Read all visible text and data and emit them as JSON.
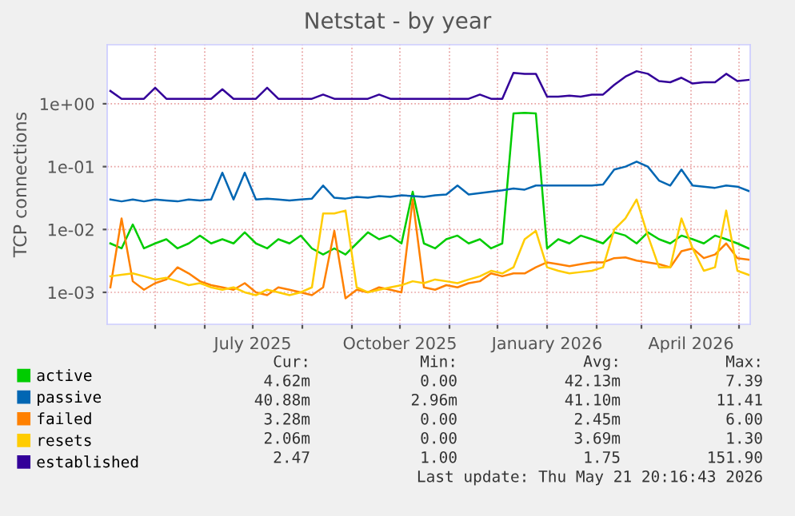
{
  "chart_data": {
    "type": "line",
    "title": "Netstat - by year",
    "ylabel": "TCP connections",
    "log": "y",
    "grid": true,
    "legend": "bottom",
    "marker": "none",
    "line_style": "solid",
    "xlim": [
      "2025-04-01",
      "2026-05-08"
    ],
    "xticks": [
      {
        "value": "2025-05-01",
        "label": null
      },
      {
        "value": "2025-06-01",
        "label": null
      },
      {
        "value": "2025-07-01",
        "label": "July 2025"
      },
      {
        "value": "2025-08-01",
        "label": null
      },
      {
        "value": "2025-09-01",
        "label": null
      },
      {
        "value": "2025-10-01",
        "label": "October 2025"
      },
      {
        "value": "2025-11-01",
        "label": null
      },
      {
        "value": "2025-12-01",
        "label": null
      },
      {
        "value": "2026-01-01",
        "label": "January 2026"
      },
      {
        "value": "2026-02-01",
        "label": null
      },
      {
        "value": "2026-03-01",
        "label": null
      },
      {
        "value": "2026-04-01",
        "label": "April 2026"
      },
      {
        "value": "2026-05-01",
        "label": null
      }
    ],
    "ylim": [
      0.00031,
      8.7
    ],
    "yticks": [
      {
        "value": 0.001,
        "label": "1e-03"
      },
      {
        "value": 0.01,
        "label": "1e-02"
      },
      {
        "value": 0.1,
        "label": "1e-01"
      },
      {
        "value": 1,
        "label": "1e+00"
      }
    ],
    "x": [
      "2025-04-03",
      "2025-04-10",
      "2025-04-17",
      "2025-04-24",
      "2025-05-01",
      "2025-05-08",
      "2025-05-15",
      "2025-05-22",
      "2025-05-29",
      "2025-06-05",
      "2025-06-12",
      "2025-06-19",
      "2025-06-26",
      "2025-07-03",
      "2025-07-10",
      "2025-07-17",
      "2025-07-24",
      "2025-07-31",
      "2025-08-07",
      "2025-08-14",
      "2025-08-21",
      "2025-08-28",
      "2025-09-04",
      "2025-09-11",
      "2025-09-18",
      "2025-09-25",
      "2025-10-02",
      "2025-10-09",
      "2025-10-16",
      "2025-10-23",
      "2025-10-30",
      "2025-11-06",
      "2025-11-13",
      "2025-11-20",
      "2025-11-27",
      "2025-12-04",
      "2025-12-11",
      "2025-12-18",
      "2025-12-25",
      "2026-01-01",
      "2026-01-08",
      "2026-01-15",
      "2026-01-22",
      "2026-01-29",
      "2026-02-05",
      "2026-02-12",
      "2026-02-19",
      "2026-02-26",
      "2026-03-05",
      "2026-03-12",
      "2026-03-19",
      "2026-03-26",
      "2026-04-02",
      "2026-04-09",
      "2026-04-16",
      "2026-04-23",
      "2026-04-30",
      "2026-05-07"
    ],
    "series": [
      {
        "name": "active",
        "color": "#00cc00",
        "values": [
          0.006,
          0.005,
          0.012,
          0.005,
          0.006,
          0.007,
          0.005,
          0.006,
          0.008,
          0.006,
          0.007,
          0.006,
          0.009,
          0.006,
          0.005,
          0.007,
          0.006,
          0.008,
          0.005,
          0.004,
          0.005,
          0.004,
          0.006,
          0.009,
          0.007,
          0.008,
          0.006,
          0.04,
          0.006,
          0.005,
          0.007,
          0.008,
          0.006,
          0.007,
          0.005,
          0.006,
          0.7,
          0.72,
          0.7,
          0.005,
          0.007,
          0.006,
          0.008,
          0.007,
          0.006,
          0.009,
          0.008,
          0.006,
          0.009,
          0.007,
          0.006,
          0.008,
          0.007,
          0.006,
          0.008,
          0.007,
          0.006,
          0.005
        ]
      },
      {
        "name": "passive",
        "color": "#0066b3",
        "values": [
          0.03,
          0.028,
          0.03,
          0.028,
          0.03,
          0.029,
          0.028,
          0.03,
          0.029,
          0.03,
          0.08,
          0.03,
          0.08,
          0.03,
          0.031,
          0.03,
          0.029,
          0.03,
          0.031,
          0.05,
          0.032,
          0.031,
          0.033,
          0.032,
          0.034,
          0.033,
          0.035,
          0.034,
          0.033,
          0.035,
          0.036,
          0.05,
          0.036,
          0.038,
          0.04,
          0.042,
          0.045,
          0.043,
          0.05,
          0.05,
          0.05,
          0.05,
          0.05,
          0.05,
          0.052,
          0.09,
          0.1,
          0.12,
          0.1,
          0.06,
          0.05,
          0.09,
          0.05,
          0.048,
          0.046,
          0.05,
          0.048,
          0.041
        ]
      },
      {
        "name": "failed",
        "color": "#ff8000",
        "values": [
          0.0012,
          0.015,
          0.0015,
          0.0011,
          0.0014,
          0.0016,
          0.0025,
          0.002,
          0.0015,
          0.0013,
          0.0012,
          0.0011,
          0.0014,
          0.001,
          0.0009,
          0.0012,
          0.0011,
          0.001,
          0.0009,
          0.0012,
          0.0095,
          0.0008,
          0.0011,
          0.001,
          0.0012,
          0.0011,
          0.001,
          0.03,
          0.0012,
          0.0011,
          0.0013,
          0.0012,
          0.0014,
          0.0015,
          0.002,
          0.0018,
          0.002,
          0.002,
          0.0025,
          0.003,
          0.0028,
          0.0026,
          0.0028,
          0.003,
          0.003,
          0.0035,
          0.0036,
          0.0032,
          0.003,
          0.0028,
          0.0025,
          0.0045,
          0.005,
          0.0035,
          0.004,
          0.006,
          0.0035,
          0.0033
        ]
      },
      {
        "name": "resets",
        "color": "#ffcc00",
        "values": [
          0.0018,
          0.0019,
          0.002,
          0.0018,
          0.0016,
          0.0017,
          0.0015,
          0.0013,
          0.0014,
          0.0012,
          0.0011,
          0.0012,
          0.001,
          0.0009,
          0.0011,
          0.001,
          0.0009,
          0.001,
          0.0012,
          0.018,
          0.018,
          0.02,
          0.0012,
          0.001,
          0.0011,
          0.0012,
          0.0013,
          0.0015,
          0.0014,
          0.0016,
          0.0015,
          0.0014,
          0.0016,
          0.0018,
          0.0022,
          0.002,
          0.0025,
          0.007,
          0.0095,
          0.0025,
          0.0022,
          0.002,
          0.0021,
          0.0022,
          0.0025,
          0.01,
          0.015,
          0.03,
          0.008,
          0.0025,
          0.0025,
          0.015,
          0.005,
          0.0022,
          0.0025,
          0.02,
          0.0022,
          0.0019
        ]
      },
      {
        "name": "established",
        "color": "#330099",
        "values": [
          1.6,
          1.2,
          1.2,
          1.2,
          1.8,
          1.2,
          1.2,
          1.2,
          1.2,
          1.2,
          1.7,
          1.2,
          1.2,
          1.2,
          1.8,
          1.2,
          1.2,
          1.2,
          1.2,
          1.4,
          1.2,
          1.2,
          1.2,
          1.2,
          1.4,
          1.2,
          1.2,
          1.2,
          1.2,
          1.2,
          1.2,
          1.2,
          1.2,
          1.4,
          1.2,
          1.2,
          3.1,
          3.0,
          3.0,
          1.3,
          1.3,
          1.35,
          1.3,
          1.4,
          1.4,
          2.0,
          2.7,
          3.3,
          3.0,
          2.3,
          2.2,
          2.6,
          2.1,
          2.2,
          2.2,
          3.0,
          2.3,
          2.4
        ]
      }
    ],
    "annotations": [
      "Cur:",
      "Min:",
      "Avg:",
      "Max:",
      "4.62m",
      "0.00",
      "42.13m",
      "7.39",
      "40.88m",
      "2.96m",
      "41.10m",
      "11.41",
      "3.28m",
      "0.00",
      "2.45m",
      "6.00",
      "2.06m",
      "0.00",
      "3.69m",
      "1.30",
      "2.47",
      "1.00",
      "1.75",
      "151.90",
      "Last update: Thu May 21 20:16:43 2026"
    ]
  }
}
